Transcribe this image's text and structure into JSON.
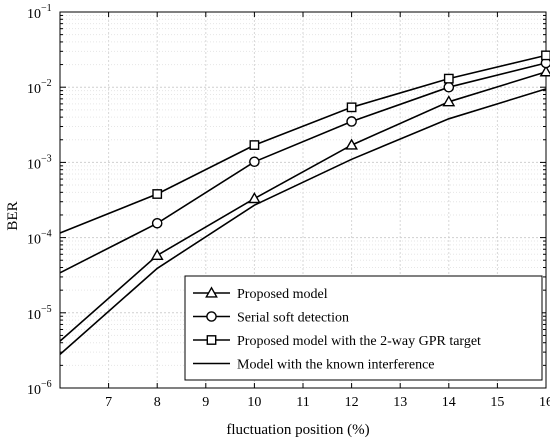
{
  "chart_data": {
    "type": "line",
    "xlabel": "fluctuation position (%)",
    "ylabel": "BER",
    "xlim": [
      6,
      16
    ],
    "ylim": [
      1e-06,
      0.1
    ],
    "yscale": "log",
    "grid": true,
    "minor_grid": true,
    "legend_position": "bottom-right",
    "x_ticks": [
      7,
      8,
      9,
      10,
      11,
      12,
      13,
      14,
      15,
      16
    ],
    "x_tick_labels": [
      "7",
      "8",
      "9",
      "10",
      "11",
      "12",
      "13",
      "14",
      "15",
      "16"
    ],
    "y_ticks": [
      {
        "value": 1e-06,
        "mantissa": "10",
        "exponent": "−6"
      },
      {
        "value": 1e-05,
        "mantissa": "10",
        "exponent": "−5"
      },
      {
        "value": 0.0001,
        "mantissa": "10",
        "exponent": "−4"
      },
      {
        "value": 0.001,
        "mantissa": "10",
        "exponent": "−3"
      },
      {
        "value": 0.01,
        "mantissa": "10",
        "exponent": "−2"
      },
      {
        "value": 0.1,
        "mantissa": "10",
        "exponent": "−1"
      }
    ],
    "series": [
      {
        "name": "Proposed model",
        "marker": "triangle",
        "x": [
          6,
          8,
          10,
          12,
          14,
          16
        ],
        "y": [
          4.2e-06,
          5.8e-05,
          0.00033,
          0.0017,
          0.0064,
          0.016
        ],
        "markers_x": [
          8,
          10,
          12,
          14,
          16
        ],
        "markers_y": [
          5.8e-05,
          0.00033,
          0.0017,
          0.0064,
          0.016
        ]
      },
      {
        "name": "Serial soft detection",
        "marker": "circle",
        "x": [
          6,
          8,
          10,
          12,
          14,
          16
        ],
        "y": [
          3.4e-05,
          0.000155,
          0.00102,
          0.0035,
          0.01,
          0.021
        ],
        "markers_x": [
          8,
          10,
          12,
          14,
          16
        ],
        "markers_y": [
          0.000155,
          0.00102,
          0.0035,
          0.01,
          0.021
        ]
      },
      {
        "name": "Proposed model with the 2-way GPR target",
        "marker": "square",
        "x": [
          6,
          8,
          10,
          12,
          14,
          16
        ],
        "y": [
          0.000115,
          0.00038,
          0.0017,
          0.0054,
          0.013,
          0.0265
        ],
        "markers_x": [
          8,
          10,
          12,
          14,
          16
        ],
        "markers_y": [
          0.00038,
          0.0017,
          0.0054,
          0.013,
          0.0265
        ]
      },
      {
        "name": "Model with the known interference",
        "marker": "none",
        "x": [
          6,
          8,
          10,
          12,
          14,
          16
        ],
        "y": [
          2.8e-06,
          3.9e-05,
          0.00027,
          0.0011,
          0.0038,
          0.0095
        ],
        "markers_x": [],
        "markers_y": []
      }
    ]
  }
}
